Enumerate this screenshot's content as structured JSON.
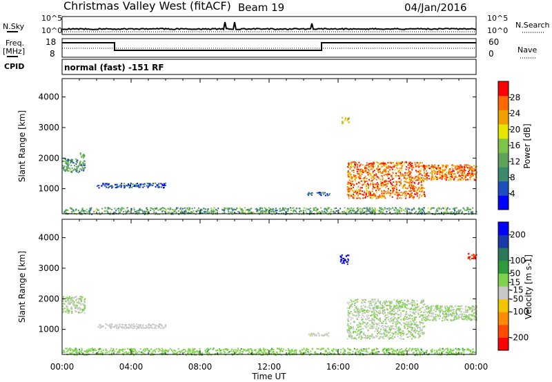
{
  "header": {
    "station": "Christmas Valley West (fitACF)",
    "beam": "Beam 19",
    "date": "04/Jan/2016"
  },
  "strips": {
    "nsky_label": "N.Sky",
    "nsearch_label": "N.Search",
    "freq_label_1": "Freq.",
    "freq_label_2": "[MHz]",
    "nave_label": "Nave",
    "cpid_label": "CPID",
    "cpid_text": "normal (fast) -151 RF",
    "noise_ticks": [
      "10^5",
      "10^0"
    ],
    "freq_ticks": [
      18,
      8
    ],
    "nave_ticks": [
      60,
      0
    ]
  },
  "colors": {
    "power_scale": [
      "#0000ff",
      "#1f4fbf",
      "#3a8a6e",
      "#5fa35a",
      "#7fc44a",
      "#e6e600",
      "#f0a000",
      "#ff6a00",
      "#ff0000"
    ],
    "velocity_scale": [
      "#ff0000",
      "#ff4c00",
      "#ff8c00",
      "#f2c500",
      "#c8c8c8",
      "#7fd24a",
      "#2e9c3c",
      "#2a7a5a",
      "#1a3aa8",
      "#0000ff"
    ]
  },
  "chart_data": [
    {
      "type": "heatmap",
      "panel": "power",
      "x_unit": "hours UT",
      "xlim": [
        0,
        24
      ],
      "ylabel": "Slant Range [km]",
      "ylim": [
        180,
        4600
      ],
      "yticks": [
        1000,
        2000,
        3000,
        4000
      ],
      "colorbar_label": "Power [dB]",
      "colorbar_ticks": [
        4,
        8,
        12,
        16,
        20,
        24,
        28
      ],
      "colorbar_range": [
        0,
        32
      ],
      "regions": [
        {
          "t": [
            0.0,
            24.0
          ],
          "r": [
            180,
            400
          ],
          "value": 12
        },
        {
          "t": [
            0.0,
            1.0
          ],
          "r": [
            1550,
            2000
          ],
          "value": 12
        },
        {
          "t": [
            1.0,
            1.3
          ],
          "r": [
            1600,
            2200
          ],
          "value": 10
        },
        {
          "t": [
            2.0,
            6.0
          ],
          "r": [
            1050,
            1200
          ],
          "value": 6
        },
        {
          "t": [
            14.2,
            15.6
          ],
          "r": [
            800,
            900
          ],
          "value": 8
        },
        {
          "t": [
            16.2,
            16.6
          ],
          "r": [
            3150,
            3350
          ],
          "value": 20
        },
        {
          "t": [
            16.5,
            21.0
          ],
          "r": [
            700,
            1900
          ],
          "value": 26
        },
        {
          "t": [
            21.0,
            24.0
          ],
          "r": [
            1300,
            1800
          ],
          "value": 26
        }
      ]
    },
    {
      "type": "heatmap",
      "panel": "velocity",
      "x_unit": "hours UT",
      "xlim": [
        0,
        24
      ],
      "xticks": [
        "00:00",
        "04:00",
        "08:00",
        "12:00",
        "16:00",
        "20:00",
        "00:00"
      ],
      "xlabel": "Time UT",
      "ylabel": "Slant Range [km]",
      "ylim": [
        180,
        4600
      ],
      "yticks": [
        1000,
        2000,
        3000,
        4000
      ],
      "colorbar_label": "Velocity [m s-1]",
      "colorbar_ticks": [
        -200,
        -100,
        -50,
        -15,
        15,
        50,
        100,
        200
      ],
      "colorbar_range": [
        -250,
        250
      ],
      "regions": [
        {
          "t": [
            0.0,
            24.0
          ],
          "r": [
            180,
            400
          ],
          "value": 40
        },
        {
          "t": [
            0.0,
            1.3
          ],
          "r": [
            1550,
            2100
          ],
          "value": 0
        },
        {
          "t": [
            2.0,
            6.0
          ],
          "r": [
            1050,
            1200
          ],
          "value": -20
        },
        {
          "t": [
            14.2,
            15.6
          ],
          "r": [
            800,
            900
          ],
          "value": -40
        },
        {
          "t": [
            16.1,
            16.6
          ],
          "r": [
            3150,
            3450
          ],
          "value": 220
        },
        {
          "t": [
            16.5,
            21.0
          ],
          "r": [
            700,
            2000
          ],
          "value": 0
        },
        {
          "t": [
            21.0,
            24.0
          ],
          "r": [
            1300,
            1800
          ],
          "value": 0
        },
        {
          "t": [
            23.5,
            24.0
          ],
          "r": [
            3300,
            3500
          ],
          "value": -200
        }
      ]
    }
  ]
}
